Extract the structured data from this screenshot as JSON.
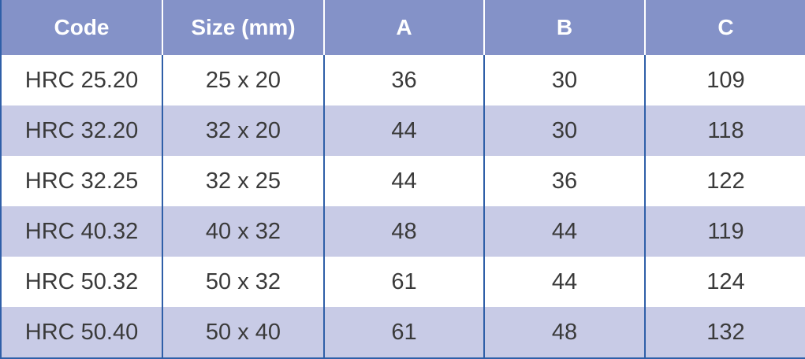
{
  "table": {
    "header": [
      "Code",
      "Size (mm)",
      "A",
      "B",
      "C"
    ],
    "rows": [
      [
        "HRC 25.20",
        "25 x 20",
        36,
        30,
        109
      ],
      [
        "HRC 32.20",
        "32 x 20",
        44,
        30,
        118
      ],
      [
        "HRC 32.25",
        "32 x 25",
        44,
        36,
        122
      ],
      [
        "HRC 40.32",
        "40 x 32",
        48,
        44,
        119
      ],
      [
        "HRC 50.32",
        "50 x 32",
        61,
        44,
        124
      ],
      [
        "HRC 50.40",
        "50 x 40",
        61,
        48,
        132
      ]
    ]
  }
}
